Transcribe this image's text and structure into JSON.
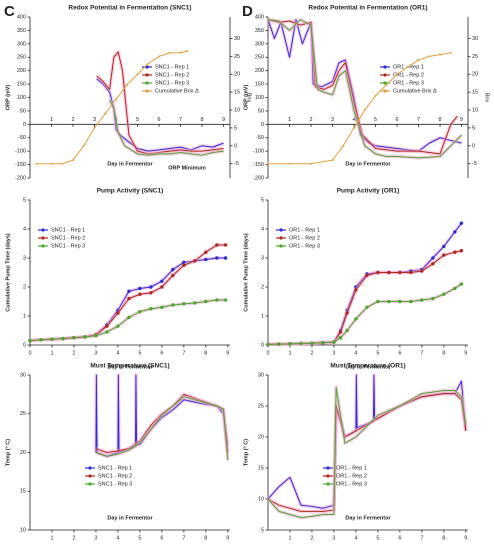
{
  "chart_data": [
    {
      "type": "line",
      "panel_label": "C",
      "title": "Redox Potential in Fermentation (SNC1)",
      "ylabel": "ORP (mV)",
      "y2label": "Brix",
      "xlabel": "Day in Fermentor",
      "annotation": "ORP Minimum",
      "legend": "right",
      "xlim": [
        0,
        9.3
      ],
      "xticks": [
        1,
        2,
        3,
        4,
        5,
        6,
        7,
        8,
        9
      ],
      "ylim": [
        -200,
        400
      ],
      "yticks": [
        -200,
        -150,
        -100,
        -50,
        0,
        50,
        100,
        150,
        200,
        250,
        300,
        350,
        400
      ],
      "y2lim": [
        -9,
        36
      ],
      "y2ticks": [
        -5,
        0,
        5,
        10,
        15,
        20,
        25,
        30
      ],
      "series": [
        {
          "name": "SNC1 - Rep 1",
          "color": "#2b2bd8",
          "x": [
            3.1,
            3.4,
            3.7,
            3.9,
            4.0,
            4.2,
            4.5,
            5.0,
            5.5,
            6.0,
            6.5,
            7.0,
            7.5,
            8.0,
            8.5,
            9.0
          ],
          "values": [
            170,
            150,
            120,
            60,
            -20,
            -40,
            -60,
            -90,
            -100,
            -95,
            -90,
            -85,
            -95,
            -80,
            -85,
            -70
          ]
        },
        {
          "name": "SNC1 - Rep 2",
          "color": "#b0281a",
          "x": [
            3.1,
            3.4,
            3.7,
            3.9,
            4.1,
            4.3,
            4.6,
            5.0,
            5.5,
            6.0,
            6.5,
            7.0,
            7.5,
            8.0,
            8.5,
            9.0
          ],
          "values": [
            180,
            160,
            130,
            250,
            270,
            200,
            -40,
            -100,
            -110,
            -105,
            -100,
            -95,
            -100,
            -100,
            -95,
            -90
          ]
        },
        {
          "name": "SNC1 - Rep 3",
          "color": "#4aa82a",
          "x": [
            3.7,
            3.9,
            4.1,
            4.4,
            5.0,
            5.5,
            6.0,
            6.5,
            7.0,
            7.5,
            8.0,
            8.5,
            9.0
          ],
          "values": [
            90,
            60,
            -30,
            -80,
            -110,
            -115,
            -110,
            -110,
            -105,
            -110,
            -115,
            -105,
            -100
          ]
        },
        {
          "name": "Cumulative Brix Δ",
          "color": "#e0a040",
          "axis": "y2",
          "x": [
            0.3,
            1,
            1.5,
            2,
            2.5,
            3,
            3.5,
            4,
            4.5,
            5,
            5.5,
            6,
            6.5,
            7,
            7.3
          ],
          "values": [
            -5,
            -5,
            -5,
            -4,
            0,
            5,
            9,
            13,
            17,
            20,
            23,
            25,
            26,
            26,
            26.5
          ]
        }
      ]
    },
    {
      "type": "line",
      "title": "Pump Activity (SNC1)",
      "ylabel": "Cumulative Pump Time (days)",
      "xlabel": "Day in Fermentor",
      "legend": "upper left",
      "markers": true,
      "xlim": [
        0,
        9.1
      ],
      "xticks": [
        0,
        1,
        2,
        3,
        4,
        5,
        6,
        7,
        8,
        9
      ],
      "ylim": [
        0,
        5
      ],
      "yticks": [
        0,
        1,
        2,
        3,
        4,
        5
      ],
      "series": [
        {
          "name": "SNC1 - Rep 1",
          "color": "#2b2bd8",
          "x": [
            0,
            0.5,
            1,
            1.5,
            2,
            2.5,
            3,
            3.5,
            4,
            4.5,
            5,
            5.5,
            6,
            6.5,
            7,
            7.5,
            8,
            8.5,
            8.9
          ],
          "values": [
            0.15,
            0.18,
            0.2,
            0.22,
            0.25,
            0.28,
            0.35,
            0.7,
            1.2,
            1.85,
            1.95,
            2.0,
            2.2,
            2.6,
            2.85,
            2.9,
            2.95,
            3.0,
            3.0
          ]
        },
        {
          "name": "SNC1 - Rep 2",
          "color": "#b0281a",
          "x": [
            0,
            0.5,
            1,
            1.5,
            2,
            2.5,
            3,
            3.5,
            4,
            4.5,
            5,
            5.5,
            6,
            6.5,
            7,
            7.5,
            8,
            8.5,
            8.9
          ],
          "values": [
            0.15,
            0.18,
            0.2,
            0.22,
            0.25,
            0.28,
            0.35,
            0.65,
            1.1,
            1.6,
            1.75,
            1.8,
            2.0,
            2.4,
            2.75,
            2.9,
            3.2,
            3.45,
            3.45
          ]
        },
        {
          "name": "SNC1 - Rep 3",
          "color": "#4aa82a",
          "x": [
            0,
            0.5,
            1,
            1.5,
            2,
            2.5,
            3,
            3.5,
            4,
            4.5,
            5,
            5.5,
            6,
            6.5,
            7,
            7.5,
            8,
            8.5,
            8.9
          ],
          "values": [
            0.15,
            0.18,
            0.2,
            0.22,
            0.25,
            0.28,
            0.32,
            0.45,
            0.65,
            0.95,
            1.15,
            1.25,
            1.3,
            1.38,
            1.42,
            1.45,
            1.5,
            1.55,
            1.55
          ]
        }
      ]
    },
    {
      "type": "line",
      "title": "Must Temperature (SNC1)",
      "ylabel": "Temp (° C)",
      "xlabel": "Day in Fermentor",
      "legend": "lower center",
      "xlim": [
        0,
        9.1
      ],
      "xticks": [
        1,
        2,
        3,
        4,
        5,
        6,
        7,
        8,
        9
      ],
      "ylim": [
        10,
        30
      ],
      "yticks": [
        10,
        15,
        20,
        25,
        30
      ],
      "series": [
        {
          "name": "SNC1 - Rep 1",
          "color": "#2b2bd8",
          "x": [
            3,
            3.02,
            3.05,
            3.5,
            4,
            4.02,
            4.05,
            4.5,
            4.8,
            4.82,
            4.85,
            5,
            5.5,
            6,
            6.5,
            7,
            7.5,
            8,
            8.5,
            8.8,
            9
          ],
          "values": [
            20,
            30,
            20,
            19.5,
            20,
            30,
            20,
            20.5,
            20.8,
            30,
            21,
            21,
            23,
            24.5,
            25.5,
            26.8,
            26.5,
            26.2,
            26,
            25,
            21
          ]
        },
        {
          "name": "SNC1 - Rep 2",
          "color": "#b0281a",
          "x": [
            3,
            3.2,
            3.5,
            4,
            4.5,
            5,
            5.5,
            6,
            6.5,
            7,
            7.5,
            8,
            8.5,
            8.8,
            9
          ],
          "values": [
            20.5,
            20.3,
            20,
            20.2,
            20.5,
            21.5,
            23.5,
            25,
            26,
            27.5,
            27,
            26.5,
            26,
            25.5,
            20
          ]
        },
        {
          "name": "SNC1 - Rep 3",
          "color": "#4aa82a",
          "x": [
            3,
            3.2,
            3.5,
            4,
            4.5,
            5,
            5.5,
            6,
            6.5,
            7,
            7.5,
            8,
            8.5,
            8.8,
            9
          ],
          "values": [
            20,
            19.8,
            19.5,
            19.8,
            20.3,
            21.2,
            23,
            24.8,
            26,
            27.2,
            26.8,
            26.4,
            26,
            25.6,
            19
          ]
        }
      ]
    },
    {
      "type": "line",
      "panel_label": "D",
      "title": "Redox Potential in Fermentation (OR1)",
      "ylabel": "ORP (mV)",
      "y2label": "Brix",
      "xlabel": "Day in Fermentor",
      "legend": "right",
      "xlim": [
        0,
        9.3
      ],
      "xticks": [
        1,
        2,
        3,
        4,
        5,
        6,
        7,
        8,
        9
      ],
      "ylim": [
        -200,
        400
      ],
      "yticks": [
        -200,
        -150,
        -100,
        -50,
        0,
        50,
        100,
        150,
        200,
        250,
        300,
        350,
        400
      ],
      "y2lim": [
        -9,
        36
      ],
      "y2ticks": [
        -5,
        0,
        5,
        10,
        15,
        20,
        25,
        30
      ],
      "series": [
        {
          "name": "OR1 - Rep 1",
          "color": "#2b2bd8",
          "x": [
            0,
            0.3,
            0.6,
            1,
            1.3,
            1.6,
            2,
            2.1,
            2.5,
            3,
            3.3,
            3.6,
            4,
            4.3,
            4.7,
            5,
            6,
            7,
            7.5,
            8,
            8.5,
            9
          ],
          "values": [
            390,
            320,
            380,
            250,
            390,
            300,
            380,
            150,
            140,
            160,
            230,
            240,
            100,
            -40,
            -70,
            -80,
            -90,
            -100,
            -70,
            -50,
            -60,
            -70
          ]
        },
        {
          "name": "OR1 - Rep 2",
          "color": "#b0281a",
          "x": [
            0,
            0.5,
            1,
            1.5,
            2,
            2.2,
            2.6,
            3,
            3.3,
            3.6,
            4,
            4.4,
            5,
            6,
            7,
            8,
            8.5,
            8.8
          ],
          "values": [
            390,
            380,
            385,
            370,
            380,
            140,
            130,
            145,
            200,
            230,
            80,
            -40,
            -90,
            -100,
            -100,
            -110,
            0,
            30
          ]
        },
        {
          "name": "OR1 - Rep 3",
          "color": "#4aa82a",
          "x": [
            0,
            0.5,
            1,
            1.5,
            2,
            2.3,
            2.6,
            3,
            3.3,
            3.6,
            4,
            4.5,
            5,
            5.5,
            6,
            7,
            8,
            9
          ],
          "values": [
            390,
            385,
            350,
            390,
            370,
            130,
            120,
            110,
            180,
            200,
            50,
            -80,
            -110,
            -120,
            -120,
            -125,
            -120,
            -40
          ]
        },
        {
          "name": "Cumulative Brix Δ",
          "color": "#e0a040",
          "axis": "y2",
          "x": [
            0,
            1,
            2,
            3,
            3.5,
            4,
            4.5,
            5,
            5.5,
            6,
            6.5,
            7,
            7.5,
            8,
            8.5
          ],
          "values": [
            -5,
            -5,
            -5,
            -4,
            0,
            5,
            10,
            14,
            17,
            20,
            22,
            24,
            25,
            25.5,
            26
          ]
        }
      ]
    },
    {
      "type": "line",
      "title": "Pump Activity (OR1)",
      "ylabel": "Cumulative Pump Time (days)",
      "xlabel": "Day in Fermentor",
      "legend": "upper left",
      "markers": true,
      "xlim": [
        0,
        9.1
      ],
      "xticks": [
        0,
        1,
        2,
        3,
        4,
        5,
        6,
        7,
        8,
        9
      ],
      "ylim": [
        0,
        5
      ],
      "yticks": [
        0,
        1,
        2,
        3,
        4,
        5
      ],
      "series": [
        {
          "name": "OR1 - Rep 1",
          "color": "#2b2bd8",
          "x": [
            0,
            0.5,
            1,
            1.5,
            2,
            2.5,
            3,
            3.3,
            3.6,
            4,
            4.5,
            5,
            5.5,
            6,
            6.5,
            7,
            7.5,
            8,
            8.5,
            8.8
          ],
          "values": [
            0.02,
            0.03,
            0.04,
            0.05,
            0.06,
            0.08,
            0.1,
            0.5,
            1.2,
            2.0,
            2.45,
            2.5,
            2.5,
            2.5,
            2.55,
            2.6,
            3.0,
            3.4,
            3.9,
            4.2
          ]
        },
        {
          "name": "OR1 - Rep 2",
          "color": "#b0281a",
          "x": [
            0,
            0.5,
            1,
            1.5,
            2,
            2.5,
            3,
            3.3,
            3.6,
            4,
            4.5,
            5,
            5.5,
            6,
            6.5,
            7,
            7.5,
            8,
            8.5,
            8.8
          ],
          "values": [
            0.02,
            0.03,
            0.04,
            0.05,
            0.06,
            0.08,
            0.1,
            0.45,
            1.1,
            1.9,
            2.4,
            2.5,
            2.5,
            2.5,
            2.5,
            2.55,
            2.8,
            3.1,
            3.2,
            3.25
          ]
        },
        {
          "name": "OR1 - Rep 3",
          "color": "#4aa82a",
          "x": [
            0,
            0.5,
            1,
            1.5,
            2,
            2.5,
            3,
            3.3,
            3.6,
            4,
            4.5,
            5,
            5.5,
            6,
            6.5,
            7,
            7.5,
            8,
            8.5,
            8.8
          ],
          "values": [
            0.02,
            0.03,
            0.04,
            0.05,
            0.06,
            0.08,
            0.1,
            0.25,
            0.5,
            0.9,
            1.3,
            1.5,
            1.5,
            1.5,
            1.5,
            1.55,
            1.6,
            1.75,
            1.95,
            2.1
          ]
        }
      ]
    },
    {
      "type": "line",
      "title": "Must Temperature (OR1)",
      "ylabel": "Temp (° C)",
      "xlabel": "Day in Fermentor",
      "legend": "lower center",
      "xlim": [
        0,
        9.1
      ],
      "xticks": [
        1,
        2,
        3,
        4,
        5,
        6,
        7,
        8,
        9
      ],
      "ylim": [
        5,
        30
      ],
      "yticks": [
        5,
        10,
        15,
        20,
        25,
        30
      ],
      "series": [
        {
          "name": "OR1 - Rep 1",
          "color": "#2b2bd8",
          "x": [
            0,
            0.5,
            1,
            1.5,
            2,
            2.5,
            3,
            3.1,
            3.5,
            4,
            4.02,
            4.05,
            4.8,
            4.82,
            4.85,
            5,
            6,
            7,
            8,
            8.5,
            8.8,
            9
          ],
          "values": [
            10,
            12,
            13.5,
            9,
            8.8,
            8.5,
            9,
            25,
            20,
            21,
            30,
            21.5,
            22.5,
            30,
            23,
            23,
            25,
            26.5,
            27,
            27,
            29,
            21
          ]
        },
        {
          "name": "OR1 - Rep 2",
          "color": "#b0281a",
          "x": [
            0,
            0.5,
            1,
            1.5,
            2,
            2.5,
            3,
            3.1,
            3.5,
            4,
            5,
            6,
            7,
            8,
            8.5,
            8.8,
            9
          ],
          "values": [
            10,
            9,
            8.5,
            8,
            8,
            8,
            8.2,
            25,
            20,
            21,
            23,
            25,
            26.5,
            27,
            27,
            26,
            21
          ]
        },
        {
          "name": "OR1 - Rep 3",
          "color": "#4aa82a",
          "x": [
            0,
            0.5,
            1,
            1.5,
            2,
            2.5,
            3,
            3.1,
            3.5,
            4,
            5,
            6,
            7,
            8,
            8.5,
            8.8,
            9
          ],
          "values": [
            10,
            8,
            7.5,
            7,
            7.2,
            7.5,
            7.5,
            28,
            19,
            20,
            23.5,
            25,
            27,
            27.5,
            27.5,
            26.5,
            22
          ]
        }
      ]
    }
  ]
}
